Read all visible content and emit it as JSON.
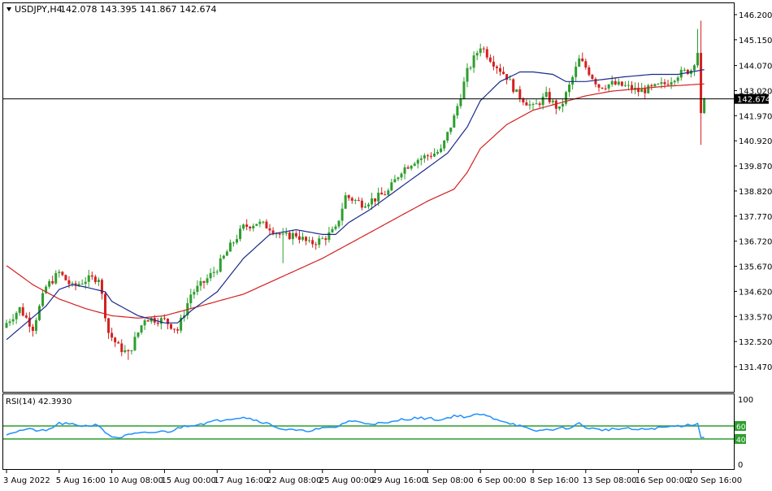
{
  "header": {
    "symbol_label": "USDJPY,H4",
    "ohlc_label": "142.078 143.395 141.867 142.674"
  },
  "rsi_panel": {
    "label": "RSI(14) 42.3930",
    "scale_labels": [
      "100",
      "60",
      "40",
      "0"
    ]
  },
  "colors": {
    "bull_candle": "#2e9e2e",
    "bear_candle": "#d42020",
    "ma_fast": "#1b2a8c",
    "ma_slow": "#d42020",
    "rsi_line": "#1e90ff",
    "rsi_levels": "#2e9e2e",
    "crosshair": "#000000",
    "price_tag_bg": "#000000",
    "price_tag_text": "#ffffff"
  },
  "chart_data": [
    {
      "type": "candlestick",
      "title": "USDJPY,H4",
      "ylim": [
        131.47,
        146.2
      ],
      "y_ticks": [
        "146.200",
        "145.150",
        "144.070",
        "143.020",
        "141.970",
        "140.920",
        "139.870",
        "138.820",
        "137.770",
        "136.720",
        "135.670",
        "134.620",
        "133.570",
        "132.520",
        "131.470"
      ],
      "current_price": "142.674",
      "x_tick_labels": [
        "3 Aug 2022",
        "5 Aug 16:00",
        "10 Aug 08:00",
        "15 Aug 00:00",
        "17 Aug 16:00",
        "22 Aug 08:00",
        "25 Aug 00:00",
        "29 Aug 16:00",
        "1 Sep 08:00",
        "6 Sep 00:00",
        "8 Sep 16:00",
        "13 Sep 08:00",
        "16 Sep 00:00",
        "20 Sep 16:00"
      ],
      "x_tick_candle_index": [
        0,
        16,
        32,
        48,
        64,
        80,
        96,
        112,
        128,
        144,
        160,
        176,
        192,
        208
      ],
      "price_anchors": [
        [
          0,
          133.3
        ],
        [
          4,
          133.9
        ],
        [
          8,
          133.1
        ],
        [
          12,
          134.8
        ],
        [
          16,
          135.4
        ],
        [
          20,
          134.8
        ],
        [
          24,
          135.1
        ],
        [
          28,
          135.2
        ],
        [
          31,
          132.9
        ],
        [
          34,
          132.3
        ],
        [
          37,
          132.0
        ],
        [
          42,
          133.5
        ],
        [
          48,
          133.4
        ],
        [
          52,
          133.0
        ],
        [
          56,
          134.5
        ],
        [
          60,
          135.0
        ],
        [
          64,
          135.6
        ],
        [
          68,
          136.5
        ],
        [
          72,
          137.3
        ],
        [
          76,
          137.5
        ],
        [
          80,
          137.3
        ],
        [
          84,
          136.9
        ],
        [
          88,
          137.0
        ],
        [
          92,
          136.6
        ],
        [
          96,
          136.8
        ],
        [
          100,
          137.2
        ],
        [
          103,
          138.6
        ],
        [
          108,
          138.3
        ],
        [
          112,
          138.5
        ],
        [
          116,
          138.8
        ],
        [
          120,
          139.7
        ],
        [
          124,
          140.1
        ],
        [
          128,
          140.3
        ],
        [
          132,
          140.5
        ],
        [
          136,
          141.9
        ],
        [
          140,
          143.8
        ],
        [
          144,
          144.9
        ],
        [
          148,
          144.2
        ],
        [
          152,
          143.6
        ],
        [
          155,
          142.9
        ],
        [
          160,
          142.3
        ],
        [
          164,
          142.8
        ],
        [
          168,
          142.2
        ],
        [
          171,
          143.2
        ],
        [
          174,
          144.3
        ],
        [
          176,
          144.0
        ],
        [
          180,
          143.2
        ],
        [
          184,
          143.3
        ],
        [
          188,
          143.2
        ],
        [
          192,
          143.0
        ],
        [
          196,
          143.1
        ],
        [
          200,
          143.3
        ],
        [
          204,
          143.7
        ],
        [
          208,
          143.9
        ],
        [
          210,
          144.6
        ],
        [
          211,
          142.08
        ],
        [
          212,
          142.674
        ]
      ],
      "ma_fast_anchors": [
        [
          0,
          132.6
        ],
        [
          12,
          134.0
        ],
        [
          16,
          134.7
        ],
        [
          20,
          134.9
        ],
        [
          24,
          134.8
        ],
        [
          30,
          134.6
        ],
        [
          32,
          134.2
        ],
        [
          40,
          133.6
        ],
        [
          48,
          133.3
        ],
        [
          52,
          133.3
        ],
        [
          56,
          133.8
        ],
        [
          64,
          134.6
        ],
        [
          72,
          136.0
        ],
        [
          80,
          137.0
        ],
        [
          88,
          137.2
        ],
        [
          96,
          137.0
        ],
        [
          100,
          137.0
        ],
        [
          104,
          137.5
        ],
        [
          110,
          138.0
        ],
        [
          120,
          139.0
        ],
        [
          128,
          139.8
        ],
        [
          134,
          140.4
        ],
        [
          140,
          141.5
        ],
        [
          144,
          142.6
        ],
        [
          150,
          143.4
        ],
        [
          156,
          143.8
        ],
        [
          160,
          143.8
        ],
        [
          166,
          143.7
        ],
        [
          170,
          143.4
        ],
        [
          176,
          143.4
        ],
        [
          182,
          143.5
        ],
        [
          188,
          143.6
        ],
        [
          196,
          143.7
        ],
        [
          204,
          143.7
        ],
        [
          212,
          143.9
        ]
      ],
      "ma_slow_anchors": [
        [
          0,
          135.7
        ],
        [
          8,
          134.9
        ],
        [
          16,
          134.3
        ],
        [
          24,
          133.9
        ],
        [
          32,
          133.6
        ],
        [
          40,
          133.5
        ],
        [
          48,
          133.6
        ],
        [
          56,
          133.9
        ],
        [
          64,
          134.2
        ],
        [
          72,
          134.5
        ],
        [
          80,
          135.0
        ],
        [
          88,
          135.5
        ],
        [
          96,
          136.0
        ],
        [
          104,
          136.6
        ],
        [
          112,
          137.2
        ],
        [
          120,
          137.8
        ],
        [
          128,
          138.4
        ],
        [
          136,
          138.9
        ],
        [
          140,
          139.6
        ],
        [
          144,
          140.6
        ],
        [
          152,
          141.6
        ],
        [
          160,
          142.2
        ],
        [
          168,
          142.5
        ],
        [
          176,
          142.8
        ],
        [
          184,
          143.0
        ],
        [
          192,
          143.1
        ],
        [
          200,
          143.2
        ],
        [
          212,
          143.3
        ]
      ]
    },
    {
      "type": "line",
      "title": "RSI(14) 42.3930",
      "ylim": [
        0,
        100
      ],
      "levels": [
        60,
        40
      ],
      "value_anchors": [
        [
          0,
          48
        ],
        [
          6,
          55
        ],
        [
          12,
          52
        ],
        [
          16,
          64
        ],
        [
          20,
          62
        ],
        [
          24,
          60
        ],
        [
          28,
          62
        ],
        [
          31,
          45
        ],
        [
          34,
          42
        ],
        [
          38,
          47
        ],
        [
          44,
          50
        ],
        [
          50,
          52
        ],
        [
          54,
          60
        ],
        [
          60,
          64
        ],
        [
          66,
          70
        ],
        [
          72,
          74
        ],
        [
          78,
          66
        ],
        [
          84,
          55
        ],
        [
          90,
          52
        ],
        [
          96,
          56
        ],
        [
          100,
          58
        ],
        [
          104,
          68
        ],
        [
          110,
          64
        ],
        [
          116,
          64
        ],
        [
          120,
          70
        ],
        [
          124,
          72
        ],
        [
          128,
          72
        ],
        [
          132,
          69
        ],
        [
          136,
          76
        ],
        [
          140,
          74
        ],
        [
          144,
          78
        ],
        [
          148,
          72
        ],
        [
          152,
          66
        ],
        [
          156,
          60
        ],
        [
          160,
          52
        ],
        [
          164,
          54
        ],
        [
          168,
          56
        ],
        [
          172,
          58
        ],
        [
          174,
          64
        ],
        [
          176,
          58
        ],
        [
          180,
          54
        ],
        [
          184,
          55
        ],
        [
          188,
          56
        ],
        [
          192,
          54
        ],
        [
          196,
          56
        ],
        [
          200,
          58
        ],
        [
          204,
          60
        ],
        [
          208,
          62
        ],
        [
          210,
          64
        ],
        [
          211,
          42.4
        ],
        [
          212,
          42.393
        ]
      ]
    }
  ]
}
